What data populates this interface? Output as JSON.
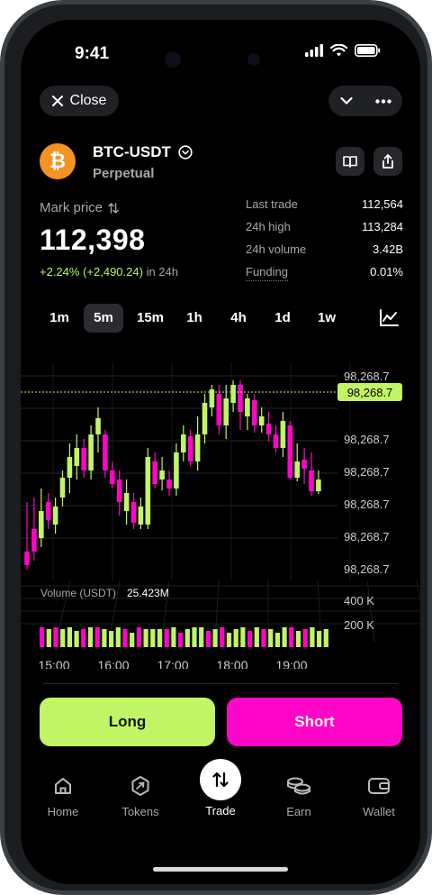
{
  "status": {
    "time": "9:41"
  },
  "header": {
    "close_label": "Close"
  },
  "asset": {
    "symbol_glyph": "₿",
    "pair": "BTC-USDT",
    "type": "Perpetual"
  },
  "mark": {
    "label": "Mark price",
    "price": "112,398",
    "change_pct": "+2.24%",
    "change_abs": "(+2,490.24)",
    "change_period": "in 24h"
  },
  "stats": [
    {
      "label": "Last trade",
      "value": "112,564"
    },
    {
      "label": "24h high",
      "value": "113,284"
    },
    {
      "label": "24h volume",
      "value": "3.42B"
    },
    {
      "label": "Funding",
      "value": "0.01%"
    }
  ],
  "timeframes": [
    "1m",
    "5m",
    "15m",
    "1h",
    "4h",
    "1d",
    "1w"
  ],
  "active_timeframe": "5m",
  "chart": {
    "price_labels": [
      "98,268.7",
      "98,268.7",
      "98,268.7",
      "98,268.7",
      "98,268.7",
      "98,268.7"
    ],
    "current_price_label": "98,268.7",
    "volume_label": "Volume (USDT)",
    "volume_value": "25.423M",
    "volume_axis": [
      "400 K",
      "200 K"
    ],
    "time_labels": [
      "15:00",
      "16:00",
      "17:00",
      "18:00",
      "19:00"
    ],
    "colors": {
      "up": "#c2f566",
      "down": "#ff05c8"
    }
  },
  "actions": {
    "long": "Long",
    "short": "Short"
  },
  "tabs": [
    {
      "label": "Home",
      "icon": "home-icon"
    },
    {
      "label": "Tokens",
      "icon": "tokens-icon"
    },
    {
      "label": "Trade",
      "icon": "trade-icon"
    },
    {
      "label": "Earn",
      "icon": "coins-icon"
    },
    {
      "label": "Wallet",
      "icon": "wallet-icon"
    }
  ]
}
